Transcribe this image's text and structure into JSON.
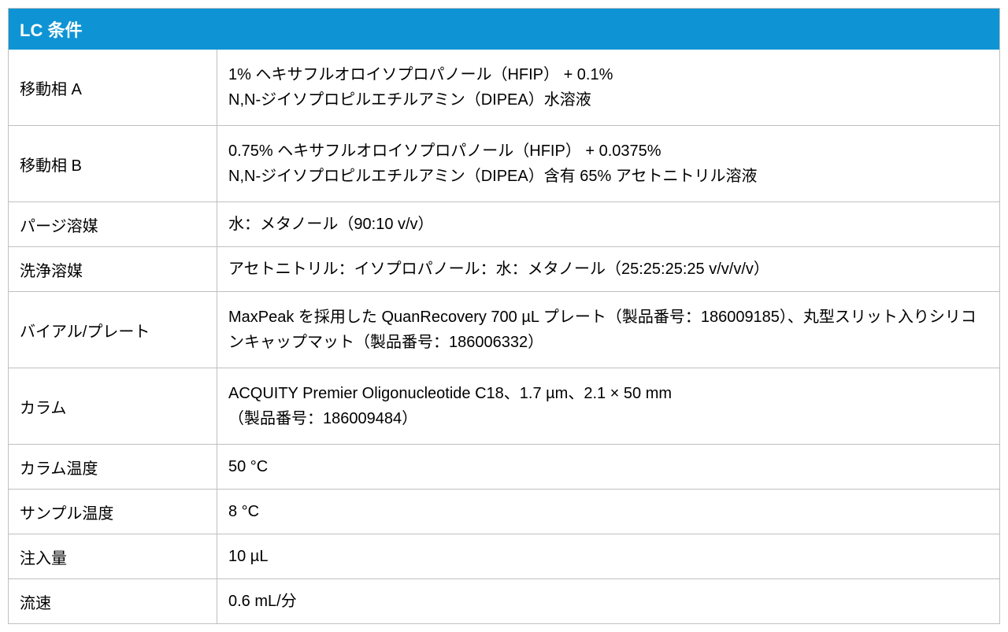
{
  "table": {
    "header": "LC 条件",
    "header_bg_color": "#0e94d4",
    "header_text_color": "#ffffff",
    "border_color": "#c0c0c0",
    "background_color": "#ffffff",
    "font_size_header": 22,
    "font_size_body": 20,
    "label_column_width": 265,
    "rows": [
      {
        "label": "移動相 A",
        "value": "1% ヘキサフルオロイソプロパノール（HFIP） + 0.1%\nN,N-ジイソプロピルエチルアミン（DIPEA）水溶液",
        "multiline": true
      },
      {
        "label": "移動相 B",
        "value": "0.75% ヘキサフルオロイソプロパノール（HFIP） + 0.0375%\nN,N-ジイソプロピルエチルアミン（DIPEA）含有 65% アセトニトリル溶液",
        "multiline": true
      },
      {
        "label": "パージ溶媒",
        "value": "水：メタノール（90:10 v/v）",
        "multiline": false
      },
      {
        "label": "洗浄溶媒",
        "value": "アセトニトリル：イソプロパノール：水：メタノール（25:25:25:25 v/v/v/v）",
        "multiline": false
      },
      {
        "label": "バイアル/プレート",
        "value": "MaxPeak を採用した QuanRecovery 700 µL プレート（製品番号：186009185）、丸型スリット入りシリコンキャップマット（製品番号：186006332）",
        "multiline": true
      },
      {
        "label": "カラム",
        "value": "ACQUITY Premier Oligonucleotide C18、1.7 µm、2.1 × 50 mm\n（製品番号：186009484）",
        "multiline": true
      },
      {
        "label": "カラム温度",
        "value": "50 °C",
        "multiline": false
      },
      {
        "label": "サンプル温度",
        "value": "8 °C",
        "multiline": false
      },
      {
        "label": "注入量",
        "value": "10 µL",
        "multiline": false
      },
      {
        "label": "流速",
        "value": "0.6 mL/分",
        "multiline": false
      }
    ]
  }
}
